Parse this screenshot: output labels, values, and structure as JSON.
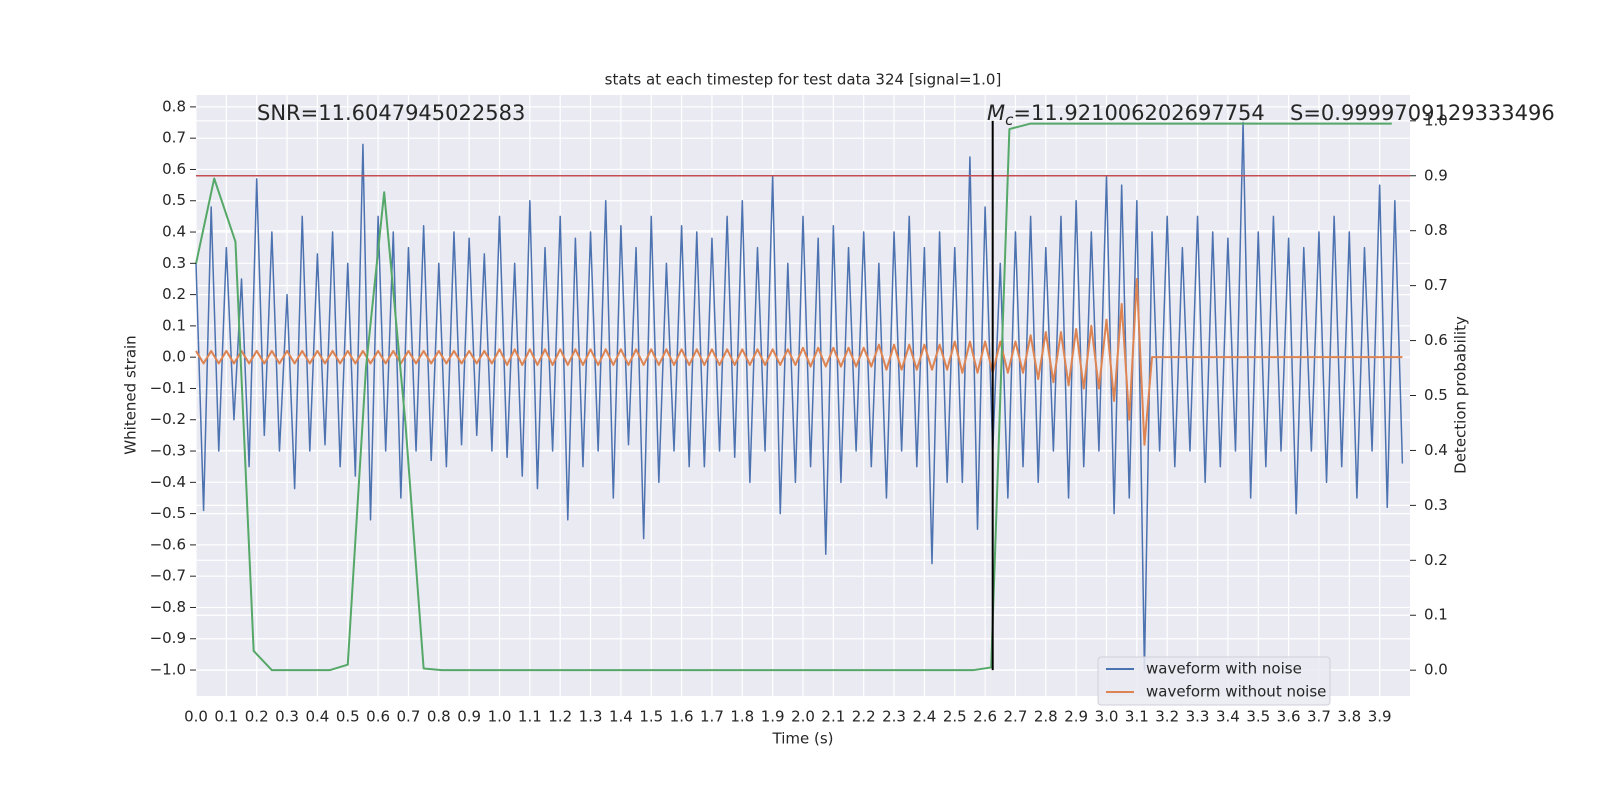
{
  "chart_data": {
    "type": "line",
    "title": "stats at each timestep for test data 324 [signal=1.0]",
    "xlabel": "Time (s)",
    "ylabel": "Whitened strain",
    "y2label": "Detection probability",
    "annotations": {
      "snr": "SNR=11.6047945022583",
      "mc_symbol": "M",
      "mc_subscript": "c",
      "mc_value": "=11.921006202697754",
      "s": "S=0.9999709129333496"
    },
    "xlim": [
      0,
      4.0
    ],
    "ylim": [
      -1.083,
      0.838
    ],
    "y2lim": [
      -0.047,
      1.047
    ],
    "xticks": [
      {
        "value": 0,
        "label": "0.0"
      },
      0.1,
      0.2,
      0.3,
      0.4,
      0.5,
      0.6,
      0.7,
      0.8,
      0.9,
      {
        "value": 1,
        "label": "1.0"
      },
      1.1,
      1.2,
      1.3,
      1.4,
      1.5,
      1.6,
      1.7,
      1.8,
      1.9,
      {
        "value": 2,
        "label": "2.0"
      },
      2.1,
      2.2,
      2.3,
      2.4,
      2.5,
      2.6,
      2.7,
      2.8,
      2.9,
      {
        "value": 3,
        "label": "3.0"
      },
      3.1,
      3.2,
      3.3,
      3.4,
      3.5,
      3.6,
      3.7,
      3.8,
      3.9
    ],
    "yticks": [
      {
        "value": -1.0,
        "label": "−1.0"
      },
      {
        "value": -0.9,
        "label": "−0.9"
      },
      {
        "value": -0.8,
        "label": "−0.8"
      },
      {
        "value": -0.7,
        "label": "−0.7"
      },
      {
        "value": -0.6,
        "label": "−0.6"
      },
      {
        "value": -0.5,
        "label": "−0.5"
      },
      {
        "value": -0.4,
        "label": "−0.4"
      },
      {
        "value": -0.3,
        "label": "−0.3"
      },
      {
        "value": -0.2,
        "label": "−0.2"
      },
      {
        "value": -0.1,
        "label": "−0.1"
      },
      {
        "value": 0,
        "label": "0.0"
      },
      0.1,
      0.2,
      0.3,
      0.4,
      0.5,
      0.6,
      0.7,
      0.8
    ],
    "y2ticks": [
      {
        "value": 0,
        "label": "0.0"
      },
      0.1,
      0.2,
      0.3,
      0.4,
      0.5,
      0.6,
      0.7,
      0.8,
      0.9,
      {
        "value": 1,
        "label": "1.0"
      }
    ],
    "grid": true,
    "legend": "lower right",
    "threshold": 0.9,
    "threshold_color": "#c44e52",
    "marker_x": 2.625,
    "marker_color": "#000000",
    "x": [
      0,
      0.025,
      0.05,
      0.075,
      0.1,
      0.125,
      0.15,
      0.175,
      0.2,
      0.225,
      0.25,
      0.275,
      0.3,
      0.325,
      0.35,
      0.375,
      0.4,
      0.425,
      0.45,
      0.475,
      0.5,
      0.525,
      0.55,
      0.575,
      0.6,
      0.625,
      0.65,
      0.675,
      0.7,
      0.725,
      0.75,
      0.775,
      0.8,
      0.825,
      0.85,
      0.875,
      0.9,
      0.925,
      0.95,
      0.975,
      1,
      1.025,
      1.05,
      1.075,
      1.1,
      1.125,
      1.15,
      1.175,
      1.2,
      1.225,
      1.25,
      1.275,
      1.3,
      1.325,
      1.35,
      1.375,
      1.4,
      1.425,
      1.45,
      1.475,
      1.5,
      1.525,
      1.55,
      1.575,
      1.6,
      1.625,
      1.65,
      1.675,
      1.7,
      1.725,
      1.75,
      1.775,
      1.8,
      1.825,
      1.85,
      1.875,
      1.9,
      1.925,
      1.95,
      1.975,
      2,
      2.025,
      2.05,
      2.075,
      2.1,
      2.125,
      2.15,
      2.175,
      2.2,
      2.225,
      2.25,
      2.275,
      2.3,
      2.325,
      2.35,
      2.375,
      2.4,
      2.425,
      2.45,
      2.475,
      2.5,
      2.525,
      2.55,
      2.575,
      2.6,
      2.625,
      2.65,
      2.675,
      2.7,
      2.725,
      2.75,
      2.775,
      2.8,
      2.825,
      2.85,
      2.875,
      2.9,
      2.925,
      2.95,
      2.975,
      3,
      3.025,
      3.05,
      3.075,
      3.1,
      3.125,
      3.15,
      3.175,
      3.2,
      3.225,
      3.25,
      3.275,
      3.3,
      3.325,
      3.35,
      3.375,
      3.4,
      3.425,
      3.45,
      3.475,
      3.5,
      3.525,
      3.55,
      3.575,
      3.6,
      3.625,
      3.65,
      3.675,
      3.7,
      3.725,
      3.75,
      3.775,
      3.8,
      3.825,
      3.85,
      3.875,
      3.9,
      3.925,
      3.95,
      3.975
    ],
    "series": [
      {
        "name": "waveform with noise",
        "color": "#4c72b0",
        "values": [
          0.3,
          -0.49,
          0.48,
          -0.3,
          0.35,
          -0.2,
          0.25,
          -0.35,
          0.57,
          -0.25,
          0.4,
          -0.3,
          0.2,
          -0.42,
          0.45,
          -0.3,
          0.33,
          -0.28,
          0.4,
          -0.35,
          0.3,
          -0.38,
          0.68,
          -0.52,
          0.45,
          -0.3,
          0.4,
          -0.45,
          0.35,
          -0.3,
          0.42,
          -0.33,
          0.3,
          -0.35,
          0.4,
          -0.28,
          0.38,
          -0.25,
          0.33,
          -0.3,
          0.45,
          -0.32,
          0.3,
          -0.38,
          0.5,
          -0.42,
          0.35,
          -0.3,
          0.45,
          -0.52,
          0.38,
          -0.35,
          0.4,
          -0.3,
          0.5,
          -0.45,
          0.42,
          -0.28,
          0.35,
          -0.58,
          0.45,
          -0.4,
          0.3,
          -0.3,
          0.42,
          -0.35,
          0.4,
          -0.35,
          0.38,
          -0.3,
          0.45,
          -0.32,
          0.5,
          -0.4,
          0.35,
          -0.3,
          0.58,
          -0.5,
          0.3,
          -0.4,
          0.45,
          -0.35,
          0.38,
          -0.63,
          0.42,
          -0.4,
          0.35,
          -0.3,
          0.4,
          -0.35,
          0.3,
          -0.45,
          0.4,
          -0.3,
          0.45,
          -0.35,
          0.35,
          -0.66,
          0.4,
          -0.4,
          0.35,
          -0.4,
          0.64,
          -0.55,
          0.48,
          -0.3,
          0.3,
          -0.45,
          0.4,
          -0.35,
          0.45,
          -0.4,
          0.35,
          -0.3,
          0.45,
          -0.45,
          0.5,
          -0.35,
          0.4,
          -0.3,
          0.58,
          -0.5,
          0.55,
          -0.45,
          0.5,
          -1.0,
          0.4,
          -0.3,
          0.45,
          -0.35,
          0.35,
          -0.3,
          0.45,
          -0.4,
          0.4,
          -0.35,
          0.38,
          -0.3,
          0.75,
          -0.45,
          0.4,
          -0.35,
          0.45,
          -0.3,
          0.38,
          -0.5,
          0.35,
          -0.3,
          0.4,
          -0.4,
          0.45,
          -0.35,
          0.4,
          -0.45,
          0.35,
          -0.3,
          0.55,
          -0.48,
          0.5,
          -0.34
        ]
      },
      {
        "name": "waveform without noise",
        "color": "#dd8452",
        "values": [
          0.02,
          -0.02,
          0.02,
          -0.02,
          0.02,
          -0.02,
          0.02,
          -0.02,
          0.02,
          -0.02,
          0.02,
          -0.02,
          0.02,
          -0.02,
          0.02,
          -0.02,
          0.02,
          -0.02,
          0.02,
          -0.02,
          0.02,
          -0.02,
          0.02,
          -0.02,
          0.02,
          -0.02,
          0.02,
          -0.02,
          0.02,
          -0.02,
          0.02,
          -0.02,
          0.02,
          -0.02,
          0.02,
          -0.02,
          0.02,
          -0.02,
          0.02,
          -0.02,
          0.025,
          -0.025,
          0.025,
          -0.025,
          0.025,
          -0.025,
          0.025,
          -0.025,
          0.025,
          -0.025,
          0.025,
          -0.025,
          0.025,
          -0.025,
          0.025,
          -0.025,
          0.025,
          -0.025,
          0.025,
          -0.025,
          0.025,
          -0.025,
          0.025,
          -0.025,
          0.025,
          -0.025,
          0.025,
          -0.025,
          0.025,
          -0.025,
          0.025,
          -0.025,
          0.025,
          -0.025,
          0.025,
          -0.025,
          0.025,
          -0.025,
          0.025,
          -0.025,
          0.03,
          -0.03,
          0.03,
          -0.03,
          0.03,
          -0.03,
          0.03,
          -0.03,
          0.03,
          -0.03,
          0.04,
          -0.04,
          0.04,
          -0.04,
          0.04,
          -0.04,
          0.04,
          -0.04,
          0.04,
          -0.04,
          0.05,
          -0.05,
          0.05,
          -0.05,
          0.05,
          -0.05,
          0.05,
          -0.05,
          0.05,
          -0.05,
          0.07,
          -0.07,
          0.08,
          -0.08,
          0.08,
          -0.09,
          0.09,
          -0.1,
          0.1,
          -0.1,
          0.12,
          -0.14,
          0.17,
          -0.2,
          0.25,
          -0.28,
          0,
          0,
          0,
          0,
          0,
          0,
          0,
          0,
          0,
          0,
          0,
          0,
          0,
          0,
          0,
          0,
          0,
          0,
          0,
          0,
          0,
          0,
          0,
          0,
          0,
          0,
          0,
          0,
          0,
          0,
          0,
          0,
          0,
          0
        ]
      },
      {
        "name": "Detection probability",
        "color": "#55a868",
        "axis": "y2",
        "x": [
          0,
          0.06,
          0.13,
          0.19,
          0.25,
          0.44,
          0.5,
          0.56,
          0.62,
          0.69,
          0.75,
          0.81,
          2.56,
          2.62,
          2.68,
          2.75,
          3.94
        ],
        "values": [
          0.74,
          0.895,
          0.78,
          0.035,
          0.0,
          0.0,
          0.01,
          0.55,
          0.87,
          0.45,
          0.003,
          0.0,
          0.0,
          0.005,
          0.985,
          0.995,
          0.995
        ]
      }
    ]
  }
}
